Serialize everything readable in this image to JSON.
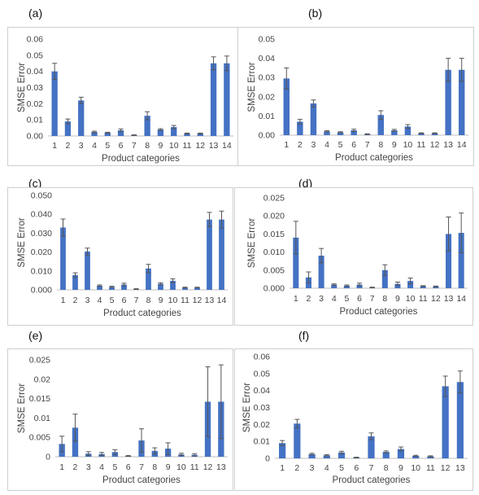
{
  "colors": {
    "bar": "#4472c4",
    "error_bar": "#555555",
    "axis": "#bfbfbf",
    "frame": "#cfcfcf"
  },
  "chart_data": [
    {
      "panel": "(a)",
      "type": "bar",
      "xlabel": "Product categories",
      "ylabel": "SMSE Error",
      "ylim": [
        0,
        0.06
      ],
      "yticks": [
        "0.00",
        "0.01",
        "0.02",
        "0.03",
        "0.04",
        "0.05",
        "0.06"
      ],
      "categories": [
        "1",
        "2",
        "3",
        "4",
        "5",
        "6",
        "7",
        "8",
        "9",
        "10",
        "11",
        "12",
        "13",
        "14"
      ],
      "values": [
        0.04,
        0.009,
        0.022,
        0.0025,
        0.002,
        0.0035,
        0.0005,
        0.0125,
        0.004,
        0.0055,
        0.0015,
        0.0015,
        0.045,
        0.045
      ],
      "errors": [
        0.005,
        0.0015,
        0.002,
        0.0005,
        0.0003,
        0.0008,
        0.0002,
        0.0025,
        0.0005,
        0.001,
        0.0003,
        0.0003,
        0.004,
        0.0045
      ]
    },
    {
      "panel": "(b)",
      "type": "bar",
      "xlabel": "Product categories",
      "ylabel": "SMSE Error",
      "ylim": [
        0,
        0.05
      ],
      "yticks": [
        "0.00",
        "0.01",
        "0.02",
        "0.03",
        "0.04",
        "0.05"
      ],
      "categories": [
        "1",
        "2",
        "3",
        "4",
        "5",
        "6",
        "7",
        "8",
        "9",
        "10",
        "11",
        "12",
        "13",
        "14"
      ],
      "values": [
        0.0295,
        0.007,
        0.0165,
        0.002,
        0.0015,
        0.0025,
        0.0005,
        0.0105,
        0.0025,
        0.0045,
        0.001,
        0.001,
        0.034,
        0.034
      ],
      "errors": [
        0.0055,
        0.0012,
        0.0018,
        0.0003,
        0.0003,
        0.0006,
        0.0002,
        0.0022,
        0.0005,
        0.001,
        0.0002,
        0.0002,
        0.006,
        0.006
      ]
    },
    {
      "panel": "(c)",
      "type": "bar",
      "xlabel": "Product categories",
      "ylabel": "SMSE Error",
      "ylim": [
        0,
        0.05
      ],
      "yticks": [
        "0.000",
        "0.010",
        "0.020",
        "0.030",
        "0.040",
        "0.050"
      ],
      "categories": [
        "1",
        "2",
        "3",
        "4",
        "5",
        "6",
        "7",
        "8",
        "9",
        "10",
        "11",
        "12",
        "13",
        "14"
      ],
      "values": [
        0.033,
        0.0078,
        0.0203,
        0.0022,
        0.0016,
        0.0028,
        0.0004,
        0.0113,
        0.0032,
        0.0048,
        0.0012,
        0.0012,
        0.0372,
        0.0372
      ],
      "errors": [
        0.0045,
        0.0012,
        0.0018,
        0.0004,
        0.0003,
        0.0007,
        0.0002,
        0.0022,
        0.0005,
        0.001,
        0.0002,
        0.0002,
        0.0038,
        0.0045
      ]
    },
    {
      "panel": "(d)",
      "type": "bar",
      "xlabel": "Product categories",
      "ylabel": "SMSE Error",
      "ylim": [
        0,
        0.025
      ],
      "yticks": [
        "0.000",
        "0.005",
        "0.010",
        "0.015",
        "0.020",
        "0.025"
      ],
      "categories": [
        "1",
        "2",
        "3",
        "4",
        "5",
        "6",
        "7",
        "8",
        "9",
        "10",
        "11",
        "12",
        "13",
        "14"
      ],
      "values": [
        0.014,
        0.003,
        0.009,
        0.001,
        0.0007,
        0.001,
        0.0002,
        0.005,
        0.0012,
        0.002,
        0.0006,
        0.0005,
        0.015,
        0.0153
      ],
      "errors": [
        0.0045,
        0.0015,
        0.002,
        0.0002,
        0.0002,
        0.0004,
        0.0001,
        0.0015,
        0.0005,
        0.0008,
        0.0001,
        0.0001,
        0.0047,
        0.0055
      ]
    },
    {
      "panel": "(e)",
      "type": "bar",
      "xlabel": "Product categories",
      "ylabel": "SMSE Error",
      "ylim": [
        0,
        0.025
      ],
      "yticks": [
        "0",
        "0.005",
        "0.01",
        "0.015",
        "0.02",
        "0.025"
      ],
      "categories": [
        "1",
        "2",
        "3",
        "4",
        "5",
        "6",
        "7",
        "8",
        "9",
        "10",
        "11",
        "12",
        "13"
      ],
      "values": [
        0.0033,
        0.0075,
        0.0008,
        0.0007,
        0.0012,
        0.0002,
        0.0042,
        0.0015,
        0.0021,
        0.0006,
        0.0005,
        0.0142,
        0.0142
      ],
      "errors": [
        0.002,
        0.0035,
        0.0005,
        0.0004,
        0.0006,
        0.0001,
        0.003,
        0.0008,
        0.0015,
        0.0003,
        0.0003,
        0.009,
        0.0095
      ]
    },
    {
      "panel": "(f)",
      "type": "bar",
      "xlabel": "Product categories",
      "ylabel": "SMSE Error",
      "ylim": [
        0,
        0.06
      ],
      "yticks": [
        "0",
        "0.01",
        "0.02",
        "0.03",
        "0.04",
        "0.05",
        "0.06"
      ],
      "categories": [
        "1",
        "2",
        "3",
        "4",
        "5",
        "6",
        "7",
        "8",
        "9",
        "10",
        "11",
        "12",
        "13"
      ],
      "values": [
        0.009,
        0.0205,
        0.0025,
        0.0018,
        0.0035,
        0.0005,
        0.013,
        0.0038,
        0.0055,
        0.0015,
        0.0012,
        0.0425,
        0.045
      ],
      "errors": [
        0.0015,
        0.0025,
        0.0005,
        0.0004,
        0.0007,
        0.0002,
        0.002,
        0.0006,
        0.0012,
        0.0003,
        0.0003,
        0.006,
        0.0065
      ]
    }
  ]
}
